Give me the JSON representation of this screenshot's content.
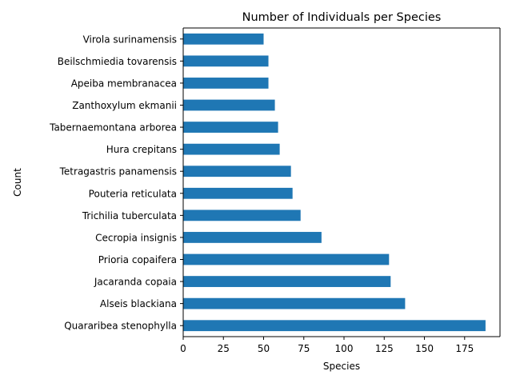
{
  "chart_data": {
    "type": "bar",
    "orientation": "horizontal",
    "title": "Number of Individuals per Species",
    "xlabel": "Species",
    "ylabel": "Count",
    "categories": [
      "Quararibea stenophylla",
      "Alseis blackiana",
      "Jacaranda copaia",
      "Prioria copaifera",
      "Cecropia insignis",
      "Trichilia tuberculata",
      "Pouteria reticulata",
      "Tetragastris panamensis",
      "Hura crepitans",
      "Tabernaemontana arborea",
      "Zanthoxylum ekmanii",
      "Apeiba membranacea",
      "Beilschmiedia tovarensis",
      "Virola surinamensis"
    ],
    "values": [
      188,
      138,
      129,
      128,
      86,
      73,
      68,
      67,
      60,
      59,
      57,
      53,
      53,
      50
    ],
    "xlim": [
      0,
      197
    ],
    "xticks": [
      0,
      25,
      50,
      75,
      100,
      125,
      150,
      175
    ],
    "grid": false,
    "bar_color": "#1f77b4"
  }
}
